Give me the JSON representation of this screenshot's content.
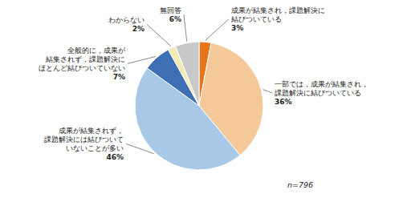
{
  "chart_data": {
    "type": "pie",
    "categories": [
      "成果が結集され，課題解決に\n結びついている",
      "一部では，成果が結集され，\n課題解決に結びついている",
      "成果が結集されず，\n課題解決には結びついて\nいないことが多い",
      "全般的に，成果が\n結集されず，課題解決に\nほとんど結びついていない",
      "わからない",
      "無回答"
    ],
    "values": [
      3,
      36,
      46,
      7,
      2,
      6
    ],
    "value_labels": [
      "3%",
      "36%",
      "46%",
      "7%",
      "2%",
      "6%"
    ],
    "colors": [
      "#E8751A",
      "#F5C89A",
      "#A8C8E8",
      "#3E6EB4",
      "#F0EBB4",
      "#C8C8C8"
    ],
    "data_labels": true,
    "annotations": [
      "n=796"
    ]
  }
}
